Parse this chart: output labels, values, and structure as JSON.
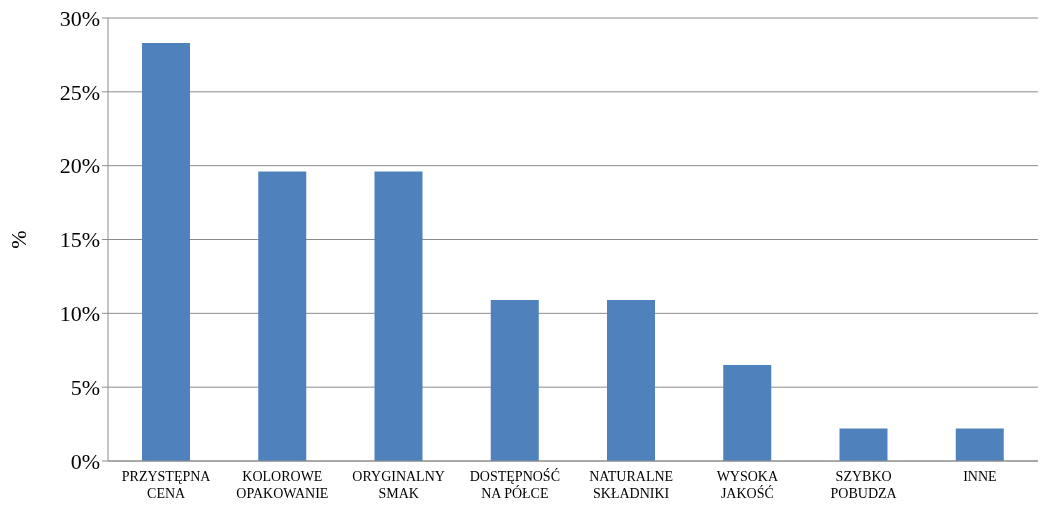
{
  "chart_data": {
    "type": "bar",
    "ylabel": "%",
    "categories": [
      "PRZYSTĘPNA CENA",
      "KOLOROWE OPAKOWANIE",
      "ORYGINALNY SMAK",
      "DOSTĘPNOŚĆ NA PÓŁCE",
      "NATURALNE SKŁADNIKI",
      "WYSOKA JAKOŚĆ",
      "SZYBKO POBUDZA",
      "INNE"
    ],
    "values": [
      28.3,
      19.6,
      19.6,
      10.9,
      10.9,
      6.5,
      2.2,
      2.2
    ],
    "color": "#4f81bd",
    "ylim": [
      0,
      30
    ],
    "yticks": [
      {
        "value": 0,
        "label": "0%"
      },
      {
        "value": 5,
        "label": "5%"
      },
      {
        "value": 10,
        "label": "10%"
      },
      {
        "value": 15,
        "label": "15%"
      },
      {
        "value": 20,
        "label": "20%"
      },
      {
        "value": 25,
        "label": "25%"
      },
      {
        "value": 30,
        "label": "30%"
      }
    ],
    "grid": "y",
    "legend": false
  }
}
